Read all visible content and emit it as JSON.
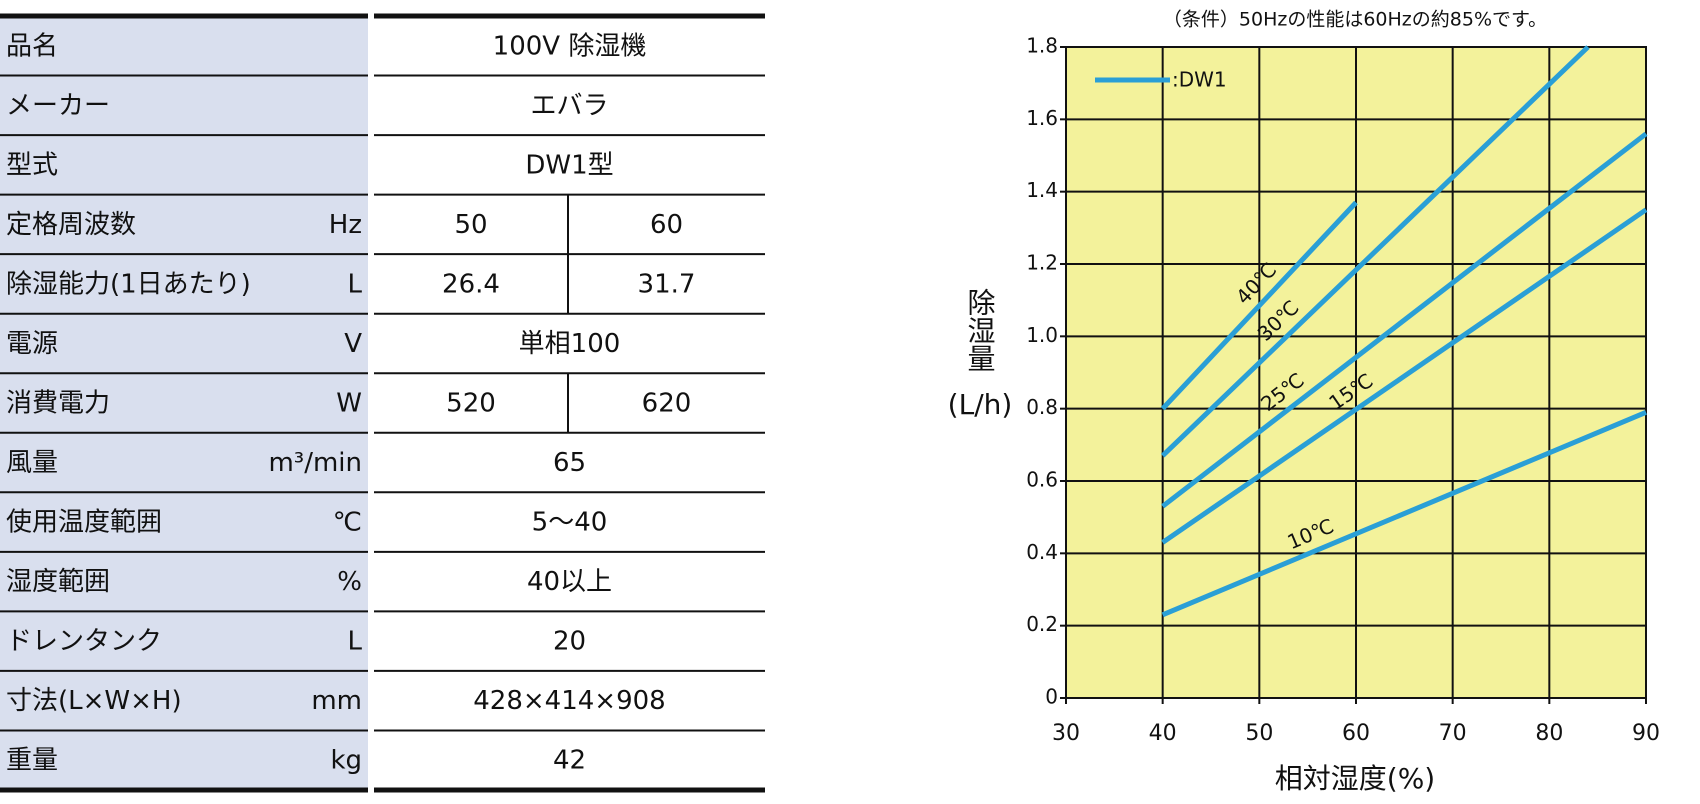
{
  "table": {
    "rows": [
      {
        "label": "品名",
        "value": "100V 除湿機"
      },
      {
        "label": "メーカー",
        "value": "エバラ"
      },
      {
        "label": "型式",
        "value": "DW1型"
      },
      {
        "label": "定格周波数",
        "unit": "Hz",
        "values": [
          "50",
          "60"
        ]
      },
      {
        "label": "除湿能力(1日あたり)",
        "unit": "L",
        "values": [
          "26.4",
          "31.7"
        ]
      },
      {
        "label": "電源",
        "unit": "V",
        "value": "単相100"
      },
      {
        "label": "消費電力",
        "unit": "W",
        "values": [
          "520",
          "620"
        ]
      },
      {
        "label": "風量",
        "unit": "m³/min",
        "value": "65"
      },
      {
        "label": "使用温度範囲",
        "unit": "℃",
        "value": "5～40"
      },
      {
        "label": "湿度範囲",
        "unit": "%",
        "value": "40以上"
      },
      {
        "label": "ドレンタンク",
        "unit": "L",
        "value": "20"
      },
      {
        "label": "寸法(L×W×H)",
        "unit": "mm",
        "value": "428×414×908"
      },
      {
        "label": "重量",
        "unit": "kg",
        "value": "42"
      }
    ]
  },
  "chart_data": {
    "type": "line",
    "title": "（条件）50Hzの性能は60Hzの約85%です。",
    "x_label": "相対湿度(%)",
    "y_label": "除湿量",
    "y_unit": "(L/h)",
    "legend_label": ":DW1",
    "grid": true,
    "background": "#f3f29b",
    "xlim": [
      30,
      90
    ],
    "xticks": [
      30,
      40,
      50,
      60,
      70,
      80,
      90
    ],
    "ylim": [
      0,
      1.8
    ],
    "yticks": [
      0,
      0.2,
      0.4,
      0.6,
      0.8,
      {
        "value": 1,
        "label": "1.0"
      },
      1.2,
      1.4,
      1.6,
      1.8
    ],
    "series": [
      {
        "name": "40℃",
        "color": "#2a9fd6",
        "x": [
          40,
          60
        ],
        "values": [
          0.8,
          1.37
        ]
      },
      {
        "name": "30℃",
        "color": "#2a9fd6",
        "x": [
          40,
          84
        ],
        "values": [
          0.67,
          1.8
        ]
      },
      {
        "name": "25℃",
        "color": "#2a9fd6",
        "x": [
          40,
          90
        ],
        "values": [
          0.53,
          1.56
        ]
      },
      {
        "name": "15℃",
        "color": "#2a9fd6",
        "x": [
          40,
          90
        ],
        "values": [
          0.43,
          1.35
        ]
      },
      {
        "name": "10℃",
        "color": "#2a9fd6",
        "x": [
          40,
          90
        ],
        "values": [
          0.23,
          0.79
        ]
      }
    ]
  }
}
